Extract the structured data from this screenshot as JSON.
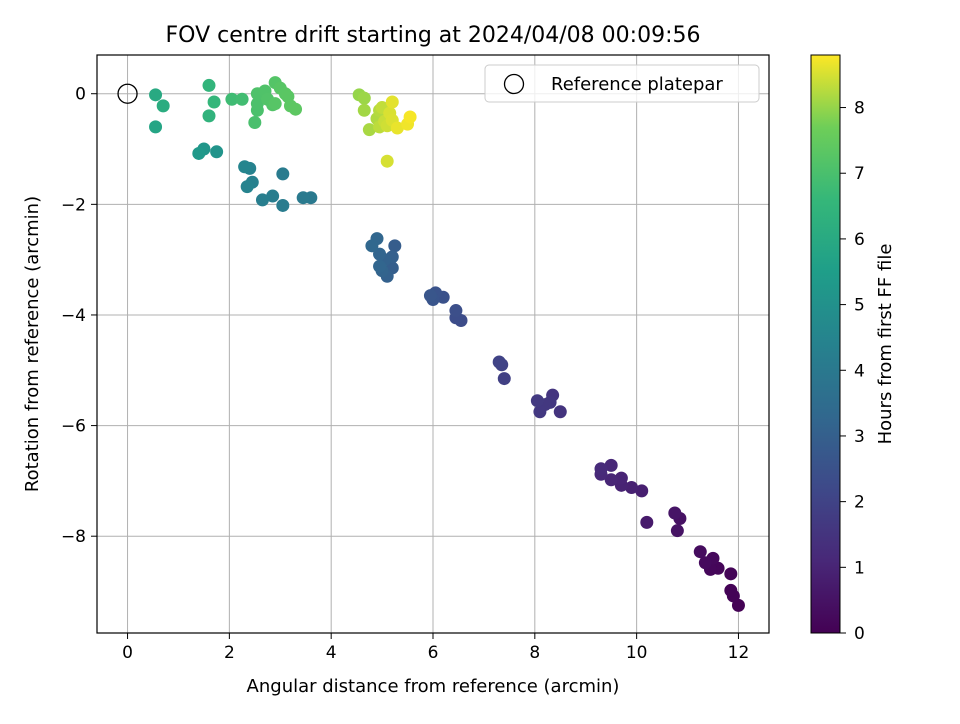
{
  "chart_data": {
    "type": "scatter",
    "title": "FOV centre drift starting at 2024/04/08 00:09:56",
    "xlabel": "Angular distance from reference (arcmin)",
    "ylabel": "Rotation from reference (arcmin)",
    "xlim": [
      -0.6,
      12.6
    ],
    "ylim": [
      -9.75,
      0.7
    ],
    "x_ticks": [
      0,
      2,
      4,
      6,
      8,
      10,
      12
    ],
    "x_tick_labels": [
      "0",
      "2",
      "4",
      "6",
      "8",
      "10",
      "12"
    ],
    "y_ticks": [
      0,
      -2,
      -4,
      -6,
      -8
    ],
    "y_tick_labels": [
      "0",
      "−2",
      "−4",
      "−6",
      "−8"
    ],
    "grid": true,
    "legend": {
      "position": "top-right",
      "entries": [
        "Reference platepar"
      ]
    },
    "reference_point": {
      "x": 0,
      "y": 0,
      "marker": "open-circle"
    },
    "colorbar": {
      "label": "Hours from first FF file",
      "range": [
        0,
        8.8
      ],
      "ticks": [
        0,
        1,
        2,
        3,
        4,
        5,
        6,
        7,
        8
      ],
      "tick_labels": [
        "0",
        "1",
        "2",
        "3",
        "4",
        "5",
        "6",
        "7",
        "8"
      ],
      "colormap": "viridis"
    },
    "points": [
      {
        "x": 12.0,
        "y": -9.25,
        "h": 0.02
      },
      {
        "x": 11.9,
        "y": -9.08,
        "h": 0.05
      },
      {
        "x": 11.85,
        "y": -8.98,
        "h": 0.07
      },
      {
        "x": 11.85,
        "y": -8.68,
        "h": 0.1
      },
      {
        "x": 11.6,
        "y": -8.58,
        "h": 0.15
      },
      {
        "x": 11.45,
        "y": -8.6,
        "h": 0.18
      },
      {
        "x": 11.5,
        "y": -8.4,
        "h": 0.22
      },
      {
        "x": 11.35,
        "y": -8.48,
        "h": 0.26
      },
      {
        "x": 11.25,
        "y": -8.28,
        "h": 0.3
      },
      {
        "x": 10.85,
        "y": -7.68,
        "h": 0.45
      },
      {
        "x": 10.8,
        "y": -7.9,
        "h": 0.5
      },
      {
        "x": 10.75,
        "y": -7.58,
        "h": 0.55
      },
      {
        "x": 10.2,
        "y": -7.75,
        "h": 0.7
      },
      {
        "x": 10.1,
        "y": -7.18,
        "h": 0.85
      },
      {
        "x": 9.9,
        "y": -7.12,
        "h": 0.9
      },
      {
        "x": 9.7,
        "y": -7.08,
        "h": 0.95
      },
      {
        "x": 9.7,
        "y": -6.95,
        "h": 1.0
      },
      {
        "x": 9.5,
        "y": -6.98,
        "h": 1.05
      },
      {
        "x": 9.5,
        "y": -6.72,
        "h": 1.1
      },
      {
        "x": 9.3,
        "y": -6.88,
        "h": 1.15
      },
      {
        "x": 9.3,
        "y": -6.78,
        "h": 1.2
      },
      {
        "x": 8.5,
        "y": -5.75,
        "h": 1.5
      },
      {
        "x": 8.35,
        "y": -5.45,
        "h": 1.55
      },
      {
        "x": 8.3,
        "y": -5.58,
        "h": 1.6
      },
      {
        "x": 8.2,
        "y": -5.62,
        "h": 1.62
      },
      {
        "x": 8.1,
        "y": -5.75,
        "h": 1.65
      },
      {
        "x": 8.05,
        "y": -5.55,
        "h": 1.7
      },
      {
        "x": 7.4,
        "y": -5.15,
        "h": 1.9
      },
      {
        "x": 7.35,
        "y": -4.9,
        "h": 1.95
      },
      {
        "x": 7.3,
        "y": -4.85,
        "h": 2.0
      },
      {
        "x": 6.55,
        "y": -4.1,
        "h": 2.3
      },
      {
        "x": 6.45,
        "y": -4.05,
        "h": 2.35
      },
      {
        "x": 6.45,
        "y": -3.92,
        "h": 2.4
      },
      {
        "x": 6.2,
        "y": -3.68,
        "h": 2.5
      },
      {
        "x": 6.05,
        "y": -3.6,
        "h": 2.55
      },
      {
        "x": 6.0,
        "y": -3.72,
        "h": 2.6
      },
      {
        "x": 5.95,
        "y": -3.65,
        "h": 2.65
      },
      {
        "x": 5.25,
        "y": -2.75,
        "h": 2.9
      },
      {
        "x": 5.2,
        "y": -3.15,
        "h": 2.95
      },
      {
        "x": 5.2,
        "y": -2.95,
        "h": 3.0
      },
      {
        "x": 5.1,
        "y": -3.3,
        "h": 3.05
      },
      {
        "x": 5.05,
        "y": -3.0,
        "h": 3.1
      },
      {
        "x": 5.0,
        "y": -3.2,
        "h": 3.15
      },
      {
        "x": 4.95,
        "y": -2.9,
        "h": 3.2
      },
      {
        "x": 4.95,
        "y": -3.12,
        "h": 3.22
      },
      {
        "x": 4.9,
        "y": -2.62,
        "h": 3.25
      },
      {
        "x": 4.8,
        "y": -2.75,
        "h": 3.3
      },
      {
        "x": 3.6,
        "y": -1.88,
        "h": 4.0
      },
      {
        "x": 3.45,
        "y": -1.88,
        "h": 4.05
      },
      {
        "x": 3.05,
        "y": -1.45,
        "h": 4.1
      },
      {
        "x": 3.05,
        "y": -2.02,
        "h": 4.15
      },
      {
        "x": 2.85,
        "y": -1.85,
        "h": 4.2
      },
      {
        "x": 2.65,
        "y": -1.92,
        "h": 4.25
      },
      {
        "x": 2.45,
        "y": -1.6,
        "h": 4.35
      },
      {
        "x": 2.4,
        "y": -1.35,
        "h": 4.4
      },
      {
        "x": 2.35,
        "y": -1.68,
        "h": 4.45
      },
      {
        "x": 2.3,
        "y": -1.32,
        "h": 4.5
      },
      {
        "x": 1.75,
        "y": -1.05,
        "h": 5.1
      },
      {
        "x": 1.5,
        "y": -1.0,
        "h": 5.2
      },
      {
        "x": 1.4,
        "y": -1.08,
        "h": 5.3
      },
      {
        "x": 0.55,
        "y": -0.6,
        "h": 5.8
      },
      {
        "x": 0.55,
        "y": -0.02,
        "h": 6.0
      },
      {
        "x": 0.7,
        "y": -0.22,
        "h": 6.1
      },
      {
        "x": 1.6,
        "y": -0.4,
        "h": 6.4
      },
      {
        "x": 1.6,
        "y": 0.15,
        "h": 6.45
      },
      {
        "x": 1.7,
        "y": -0.15,
        "h": 6.55
      },
      {
        "x": 2.05,
        "y": -0.1,
        "h": 6.8
      },
      {
        "x": 2.25,
        "y": -0.1,
        "h": 6.85
      },
      {
        "x": 2.5,
        "y": -0.52,
        "h": 7.0
      },
      {
        "x": 2.55,
        "y": -0.3,
        "h": 7.02
      },
      {
        "x": 2.55,
        "y": -0.18,
        "h": 7.05
      },
      {
        "x": 2.55,
        "y": 0.0,
        "h": 7.1
      },
      {
        "x": 2.7,
        "y": 0.05,
        "h": 7.12
      },
      {
        "x": 2.75,
        "y": -0.1,
        "h": 7.15
      },
      {
        "x": 2.85,
        "y": -0.2,
        "h": 7.18
      },
      {
        "x": 2.9,
        "y": 0.2,
        "h": 7.2
      },
      {
        "x": 2.9,
        "y": -0.18,
        "h": 7.25
      },
      {
        "x": 3.0,
        "y": 0.1,
        "h": 7.28
      },
      {
        "x": 3.1,
        "y": 0.0,
        "h": 7.3
      },
      {
        "x": 3.15,
        "y": -0.05,
        "h": 7.32
      },
      {
        "x": 3.2,
        "y": -0.22,
        "h": 7.35
      },
      {
        "x": 3.3,
        "y": -0.28,
        "h": 7.38
      },
      {
        "x": 4.55,
        "y": -0.02,
        "h": 8.0
      },
      {
        "x": 4.65,
        "y": -0.08,
        "h": 8.05
      },
      {
        "x": 4.65,
        "y": -0.3,
        "h": 8.1
      },
      {
        "x": 4.75,
        "y": -0.65,
        "h": 8.15
      },
      {
        "x": 4.9,
        "y": -0.45,
        "h": 8.2
      },
      {
        "x": 4.95,
        "y": -0.3,
        "h": 8.25
      },
      {
        "x": 4.95,
        "y": -0.6,
        "h": 8.3
      },
      {
        "x": 5.0,
        "y": -0.25,
        "h": 8.35
      },
      {
        "x": 5.05,
        "y": -0.5,
        "h": 8.4
      },
      {
        "x": 5.1,
        "y": -0.58,
        "h": 8.45
      },
      {
        "x": 5.1,
        "y": -1.22,
        "h": 8.5
      },
      {
        "x": 5.15,
        "y": -0.35,
        "h": 8.52
      },
      {
        "x": 5.2,
        "y": -0.48,
        "h": 8.55
      },
      {
        "x": 5.2,
        "y": -0.15,
        "h": 8.6
      },
      {
        "x": 5.3,
        "y": -0.62,
        "h": 8.65
      },
      {
        "x": 5.5,
        "y": -0.55,
        "h": 8.7
      },
      {
        "x": 5.55,
        "y": -0.42,
        "h": 8.75
      }
    ]
  }
}
